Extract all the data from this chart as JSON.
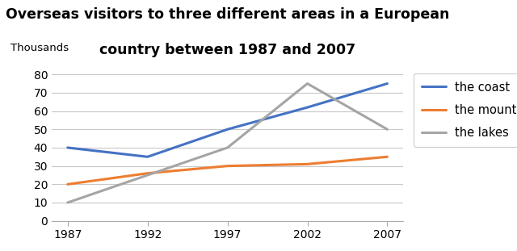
{
  "title_line1": "Overseas visitors to three different areas in a European",
  "title_line2": "country between 1987 and 2007",
  "ylabel": "Thousands",
  "years": [
    1987,
    1992,
    1997,
    2002,
    2007
  ],
  "series": [
    {
      "label": "the coast",
      "color": "#4472C4",
      "values": [
        40,
        35,
        50,
        62,
        75
      ]
    },
    {
      "label": "the mountains",
      "color": "#ED7D31",
      "values": [
        20,
        26,
        30,
        31,
        35
      ]
    },
    {
      "label": "the lakes",
      "color": "#A5A5A5",
      "values": [
        10,
        25,
        40,
        75,
        50
      ]
    }
  ],
  "ylim": [
    0,
    85
  ],
  "yticks": [
    0,
    10,
    20,
    30,
    40,
    50,
    60,
    70,
    80
  ],
  "xticks": [
    1987,
    1992,
    1997,
    2002,
    2007
  ],
  "title_fontsize": 12.5,
  "legend_fontsize": 10.5,
  "ylabel_fontsize": 9.5,
  "tick_fontsize": 10,
  "linewidth": 2.2,
  "background_color": "#ffffff",
  "grid_color": "#c8c8c8"
}
